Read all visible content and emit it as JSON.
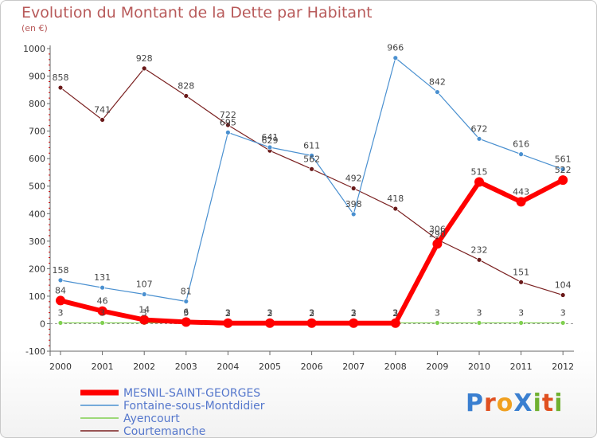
{
  "chart_data": {
    "type": "line",
    "title": "Evolution du Montant de la Dette par Habitant",
    "unit": "(en €)",
    "categories": [
      "2000",
      "2001",
      "2002",
      "2003",
      "2004",
      "2005",
      "2006",
      "2007",
      "2008",
      "2009",
      "2010",
      "2011",
      "2012"
    ],
    "ylim": [
      -100,
      1000
    ],
    "yticks": [
      -100,
      0,
      100,
      200,
      300,
      400,
      500,
      600,
      700,
      800,
      900,
      1000
    ],
    "grid": false,
    "legend_position": "bottom-left",
    "series": [
      {
        "name": "MESNIL-SAINT-GEORGES",
        "color": "#ff0000",
        "values": [
          84,
          46,
          14,
          6,
          2,
          2,
          2,
          2,
          2,
          290,
          515,
          443,
          522
        ]
      },
      {
        "name": "Fontaine-sous-Montdidier",
        "color": "#4a90d0",
        "values": [
          158,
          131,
          107,
          81,
          695,
          641,
          611,
          398,
          966,
          842,
          672,
          616,
          561
        ]
      },
      {
        "name": "Ayencourt",
        "color": "#80d050",
        "values": [
          3,
          3,
          3,
          3,
          3,
          3,
          3,
          3,
          3,
          3,
          3,
          3,
          3
        ]
      },
      {
        "name": "Courtemanche",
        "color": "#7a2020",
        "values": [
          858,
          741,
          928,
          828,
          722,
          629,
          562,
          492,
          418,
          306,
          232,
          151,
          104
        ]
      }
    ]
  },
  "logo": {
    "text": "ProXiti"
  }
}
